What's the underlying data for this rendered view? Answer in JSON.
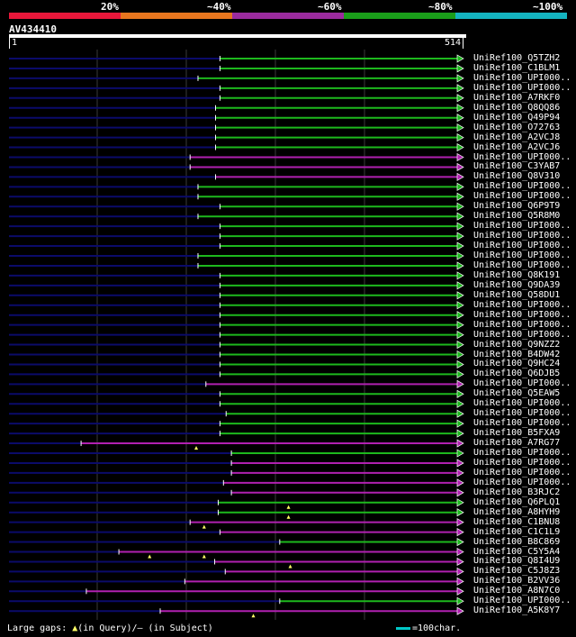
{
  "legend": {
    "labels": [
      "20%",
      "~40%",
      "~60%",
      "~80%",
      "~100%"
    ],
    "colors": [
      "#e8173a",
      "#e8761e",
      "#9b2b9e",
      "#1a9e1a",
      "#14b4c0"
    ]
  },
  "query": {
    "name": "AV434410",
    "start": "1",
    "end": "514"
  },
  "colors": {
    "green": "#1db81d",
    "purple": "#b020b0",
    "navy": "#0b0b6a",
    "grid": "#3a3a3a"
  },
  "hits": [
    {
      "label": "UniRef100_Q5TZH2",
      "start": 240,
      "color": "green"
    },
    {
      "label": "UniRef100_C1BLM1",
      "start": 240,
      "color": "green"
    },
    {
      "label": "UniRef100_UPI000..",
      "start": 215,
      "color": "green"
    },
    {
      "label": "UniRef100_UPI000..",
      "start": 240,
      "color": "green"
    },
    {
      "label": "UniRef100_A7RKF0",
      "start": 240,
      "color": "green"
    },
    {
      "label": "UniRef100_Q8QQ86",
      "start": 235,
      "color": "green"
    },
    {
      "label": "UniRef100_Q49P94",
      "start": 235,
      "color": "green"
    },
    {
      "label": "UniRef100_O72763",
      "start": 235,
      "color": "green"
    },
    {
      "label": "UniRef100_A2VCJ8",
      "start": 235,
      "color": "green"
    },
    {
      "label": "UniRef100_A2VCJ6",
      "start": 235,
      "color": "green"
    },
    {
      "label": "UniRef100_UPI000..",
      "start": 206,
      "color": "purple"
    },
    {
      "label": "UniRef100_C3YAB7",
      "start": 206,
      "color": "purple"
    },
    {
      "label": "UniRef100_Q8V310",
      "start": 235,
      "color": "purple"
    },
    {
      "label": "UniRef100_UPI000..",
      "start": 215,
      "color": "green"
    },
    {
      "label": "UniRef100_UPI000..",
      "start": 215,
      "color": "green"
    },
    {
      "label": "UniRef100_Q6P9T9",
      "start": 240,
      "color": "green"
    },
    {
      "label": "UniRef100_Q5R8M0",
      "start": 215,
      "color": "green"
    },
    {
      "label": "UniRef100_UPI000..",
      "start": 240,
      "color": "green"
    },
    {
      "label": "UniRef100_UPI000..",
      "start": 240,
      "color": "green"
    },
    {
      "label": "UniRef100_UPI000..",
      "start": 240,
      "color": "green"
    },
    {
      "label": "UniRef100_UPI000..",
      "start": 215,
      "color": "green"
    },
    {
      "label": "UniRef100_UPI000..",
      "start": 215,
      "color": "green"
    },
    {
      "label": "UniRef100_Q8K191",
      "start": 240,
      "color": "green"
    },
    {
      "label": "UniRef100_Q9DA39",
      "start": 240,
      "color": "green"
    },
    {
      "label": "UniRef100_Q58DU1",
      "start": 240,
      "color": "green"
    },
    {
      "label": "UniRef100_UPI000..",
      "start": 240,
      "color": "green"
    },
    {
      "label": "UniRef100_UPI000..",
      "start": 240,
      "color": "green"
    },
    {
      "label": "UniRef100_UPI000..",
      "start": 240,
      "color": "green"
    },
    {
      "label": "UniRef100_UPI000..",
      "start": 240,
      "color": "green"
    },
    {
      "label": "UniRef100_Q9NZZ2",
      "start": 240,
      "color": "green"
    },
    {
      "label": "UniRef100_B4DW42",
      "start": 240,
      "color": "green"
    },
    {
      "label": "UniRef100_Q9HC24",
      "start": 240,
      "color": "green"
    },
    {
      "label": "UniRef100_Q6DJB5",
      "start": 240,
      "color": "green"
    },
    {
      "label": "UniRef100_UPI000..",
      "start": 224,
      "color": "purple"
    },
    {
      "label": "UniRef100_Q5EAW5",
      "start": 240,
      "color": "green"
    },
    {
      "label": "UniRef100_UPI000..",
      "start": 240,
      "color": "green"
    },
    {
      "label": "UniRef100_UPI000..",
      "start": 247,
      "color": "green"
    },
    {
      "label": "UniRef100_UPI000..",
      "start": 240,
      "color": "green"
    },
    {
      "label": "UniRef100_B5FXA9",
      "start": 240,
      "color": "green"
    },
    {
      "label": "UniRef100_A7RG77",
      "start": 82,
      "color": "purple"
    },
    {
      "label": "UniRef100_UPI000..",
      "start": 253,
      "color": "green"
    },
    {
      "label": "UniRef100_UPI000..",
      "start": 253,
      "color": "purple"
    },
    {
      "label": "UniRef100_UPI000..",
      "start": 253,
      "color": "purple"
    },
    {
      "label": "UniRef100_UPI000..",
      "start": 244,
      "color": "purple"
    },
    {
      "label": "UniRef100_B3RJC2",
      "start": 253,
      "color": "purple"
    },
    {
      "label": "UniRef100_Q6PLQ1",
      "start": 238,
      "color": "green"
    },
    {
      "label": "UniRef100_A8HYH9",
      "start": 238,
      "color": "green"
    },
    {
      "label": "UniRef100_C1BNU8",
      "start": 206,
      "color": "purple"
    },
    {
      "label": "UniRef100_C1C1L9",
      "start": 240,
      "color": "purple"
    },
    {
      "label": "UniRef100_B8C869",
      "start": 308,
      "color": "green"
    },
    {
      "label": "UniRef100_C5Y5A4",
      "start": 125,
      "color": "purple"
    },
    {
      "label": "UniRef100_Q8I4U9",
      "start": 234,
      "color": "purple"
    },
    {
      "label": "UniRef100_C5J8Z3",
      "start": 246,
      "color": "purple"
    },
    {
      "label": "UniRef100_B2VV36",
      "start": 200,
      "color": "purple"
    },
    {
      "label": "UniRef100_A8N7C0",
      "start": 88,
      "color": "purple"
    },
    {
      "label": "UniRef100_UPI000..",
      "start": 308,
      "color": "green"
    },
    {
      "label": "UniRef100_A5K8Y7",
      "start": 172,
      "color": "purple"
    }
  ],
  "gap_markers": [
    {
      "row": 39,
      "pos": 213
    },
    {
      "row": 45,
      "pos": 318
    },
    {
      "row": 46,
      "pos": 318
    },
    {
      "row": 47,
      "pos": 222
    },
    {
      "row": 50,
      "pos": 160
    },
    {
      "row": 50,
      "pos": 222
    },
    {
      "row": 51,
      "pos": 320
    },
    {
      "row": 56,
      "pos": 278
    }
  ],
  "footer": {
    "gaps_label": "Large gaps: ",
    "gaps_query": "(in Query)/– (in Subject)",
    "gaps_tri": "▲",
    "scale_label": "=100char."
  }
}
